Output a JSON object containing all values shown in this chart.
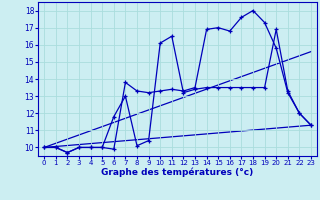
{
  "bg_color": "#cceef2",
  "grid_color": "#aadddd",
  "line_color": "#0000bb",
  "xlabel": "Graphe des températures (°c)",
  "xlim_min": -0.5,
  "xlim_max": 23.5,
  "ylim_min": 9.5,
  "ylim_max": 18.5,
  "xticks": [
    0,
    1,
    2,
    3,
    4,
    5,
    6,
    7,
    8,
    9,
    10,
    11,
    12,
    13,
    14,
    15,
    16,
    17,
    18,
    19,
    20,
    21,
    22,
    23
  ],
  "yticks": [
    10,
    11,
    12,
    13,
    14,
    15,
    16,
    17,
    18
  ],
  "curve1_x": [
    0,
    1,
    2,
    3,
    4,
    5,
    6,
    7,
    8,
    9,
    10,
    11,
    12,
    13,
    14,
    15,
    16,
    17,
    18,
    19,
    20,
    21,
    22,
    23
  ],
  "curve1_y": [
    10.0,
    10.0,
    9.7,
    10.0,
    10.0,
    10.0,
    9.9,
    13.8,
    13.3,
    13.2,
    13.3,
    13.4,
    13.3,
    13.5,
    16.9,
    17.0,
    16.8,
    17.6,
    18.0,
    17.3,
    15.8,
    13.2,
    12.0,
    11.3
  ],
  "curve2_x": [
    0,
    1,
    2,
    3,
    4,
    5,
    6,
    7,
    8,
    9,
    10,
    11,
    12,
    13,
    14,
    15,
    16,
    17,
    18,
    19,
    20,
    21,
    22,
    23
  ],
  "curve2_y": [
    10.0,
    10.0,
    9.7,
    10.0,
    10.0,
    10.0,
    11.8,
    13.0,
    10.1,
    10.4,
    16.1,
    16.5,
    13.2,
    13.4,
    13.5,
    13.5,
    13.5,
    13.5,
    13.5,
    13.5,
    16.9,
    13.3,
    12.0,
    11.3
  ],
  "ref1_y0": 10.0,
  "ref1_y1": 11.3,
  "ref2_y0": 10.0,
  "ref2_y1": 15.6,
  "ref_x0": 0,
  "ref_x1": 23
}
